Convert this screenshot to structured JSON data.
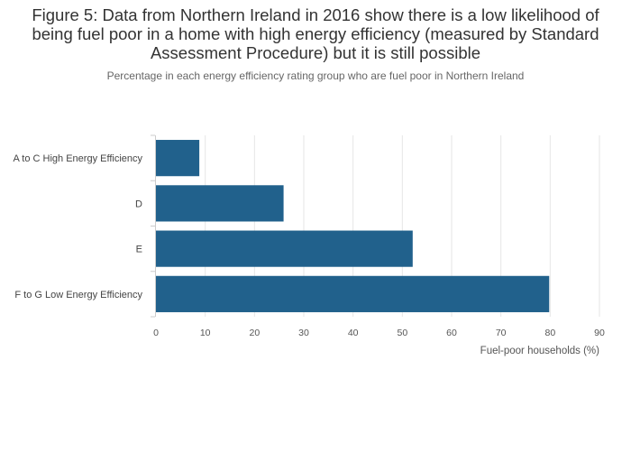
{
  "chart_data": {
    "type": "bar",
    "orientation": "horizontal",
    "title": "Figure 5: Data from Northern Ireland in 2016 show there is a low likelihood of being fuel poor in a home with high energy efficiency (measured by Standard Assessment Procedure) but it is still possible",
    "subtitle": "Percentage in each energy efficiency rating group who are fuel poor in Northern Ireland",
    "categories": [
      "A to C High Energy Efficiency",
      "D",
      "E",
      "F to G Low Energy Efficiency"
    ],
    "values": [
      8.8,
      25.9,
      52.1,
      79.8
    ],
    "xlabel": "Fuel-poor households (%)",
    "ylabel": "",
    "xlim": [
      0,
      90
    ],
    "xticks": [
      0,
      10,
      20,
      30,
      40,
      50,
      60,
      70,
      80,
      90
    ],
    "grid": true,
    "bar_color": "#21618c"
  }
}
